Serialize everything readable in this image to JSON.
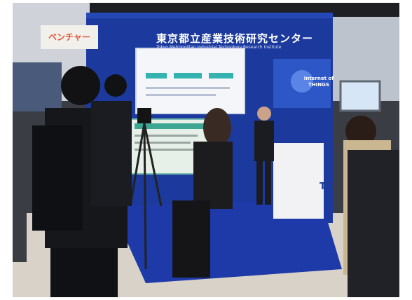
{
  "scene": {
    "banner_title": "東京都立産業技術研究センター",
    "banner_subtitle": "Tokyo Metropolitan Industrial Technology Research Institute",
    "left_sign_text": "ベンチャー",
    "tv_logo_text": "Internet of THINGS",
    "podium_text": "TO"
  }
}
